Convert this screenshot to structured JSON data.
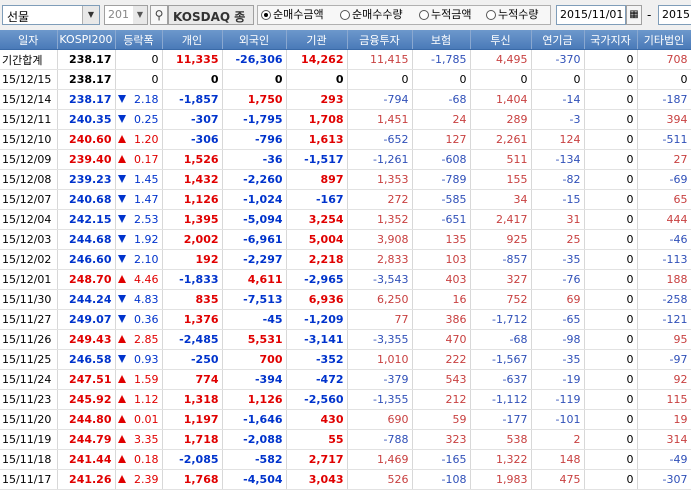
{
  "toolbar": {
    "product_select": "선물",
    "code_value": "201",
    "market_label": "KOSDAQ 종",
    "radios": [
      {
        "label": "순매수금액",
        "checked": true
      },
      {
        "label": "순매수수량",
        "checked": false
      },
      {
        "label": "누적금액",
        "checked": false
      },
      {
        "label": "누적수량",
        "checked": false
      }
    ],
    "start_date": "2015/11/01",
    "end_date": "2015",
    "dash": "-"
  },
  "table": {
    "headers": [
      "일자",
      "KOSPI200",
      "등락폭",
      "개인",
      "외국인",
      "기관",
      "금융투자",
      "보험",
      "투신",
      "연기금",
      "국가지자",
      "기타법인"
    ],
    "summary": {
      "date": "기간합계",
      "kospi": "238.17",
      "chg": "0",
      "indiv": "11,335",
      "foreign": "-26,306",
      "inst": "14,262",
      "fin": "11,415",
      "ins": "-1,785",
      "trust": "4,495",
      "pension": "-370",
      "gov": "0",
      "etc": "708"
    },
    "rows": [
      {
        "date": "15/12/15",
        "kospi": "238.17",
        "dir": "none",
        "chg": "0",
        "indiv": "0",
        "foreign": "0",
        "inst": "0",
        "fin": "0",
        "ins": "0",
        "trust": "0",
        "pension": "0",
        "gov": "0",
        "etc": "0"
      },
      {
        "date": "15/12/14",
        "kospi": "238.17",
        "dir": "down",
        "chg": "2.18",
        "indiv": "-1,857",
        "foreign": "1,750",
        "inst": "293",
        "fin": "-794",
        "ins": "-68",
        "trust": "1,404",
        "pension": "-14",
        "gov": "0",
        "etc": "-187"
      },
      {
        "date": "15/12/11",
        "kospi": "240.35",
        "dir": "down",
        "chg": "0.25",
        "indiv": "-307",
        "foreign": "-1,795",
        "inst": "1,708",
        "fin": "1,451",
        "ins": "24",
        "trust": "289",
        "pension": "-3",
        "gov": "0",
        "etc": "394"
      },
      {
        "date": "15/12/10",
        "kospi": "240.60",
        "dir": "up",
        "chg": "1.20",
        "indiv": "-306",
        "foreign": "-796",
        "inst": "1,613",
        "fin": "-652",
        "ins": "127",
        "trust": "2,261",
        "pension": "124",
        "gov": "0",
        "etc": "-511"
      },
      {
        "date": "15/12/09",
        "kospi": "239.40",
        "dir": "up",
        "chg": "0.17",
        "indiv": "1,526",
        "foreign": "-36",
        "inst": "-1,517",
        "fin": "-1,261",
        "ins": "-608",
        "trust": "511",
        "pension": "-134",
        "gov": "0",
        "etc": "27"
      },
      {
        "date": "15/12/08",
        "kospi": "239.23",
        "dir": "down",
        "chg": "1.45",
        "indiv": "1,432",
        "foreign": "-2,260",
        "inst": "897",
        "fin": "1,353",
        "ins": "-789",
        "trust": "155",
        "pension": "-82",
        "gov": "0",
        "etc": "-69"
      },
      {
        "date": "15/12/07",
        "kospi": "240.68",
        "dir": "down",
        "chg": "1.47",
        "indiv": "1,126",
        "foreign": "-1,024",
        "inst": "-167",
        "fin": "272",
        "ins": "-585",
        "trust": "34",
        "pension": "-15",
        "gov": "0",
        "etc": "65"
      },
      {
        "date": "15/12/04",
        "kospi": "242.15",
        "dir": "down",
        "chg": "2.53",
        "indiv": "1,395",
        "foreign": "-5,094",
        "inst": "3,254",
        "fin": "1,352",
        "ins": "-651",
        "trust": "2,417",
        "pension": "31",
        "gov": "0",
        "etc": "444"
      },
      {
        "date": "15/12/03",
        "kospi": "244.68",
        "dir": "down",
        "chg": "1.92",
        "indiv": "2,002",
        "foreign": "-6,961",
        "inst": "5,004",
        "fin": "3,908",
        "ins": "135",
        "trust": "925",
        "pension": "25",
        "gov": "0",
        "etc": "-46"
      },
      {
        "date": "15/12/02",
        "kospi": "246.60",
        "dir": "down",
        "chg": "2.10",
        "indiv": "192",
        "foreign": "-2,297",
        "inst": "2,218",
        "fin": "2,833",
        "ins": "103",
        "trust": "-857",
        "pension": "-35",
        "gov": "0",
        "etc": "-113"
      },
      {
        "date": "15/12/01",
        "kospi": "248.70",
        "dir": "up",
        "chg": "4.46",
        "indiv": "-1,833",
        "foreign": "4,611",
        "inst": "-2,965",
        "fin": "-3,543",
        "ins": "403",
        "trust": "327",
        "pension": "-76",
        "gov": "0",
        "etc": "188"
      },
      {
        "date": "15/11/30",
        "kospi": "244.24",
        "dir": "down",
        "chg": "4.83",
        "indiv": "835",
        "foreign": "-7,513",
        "inst": "6,936",
        "fin": "6,250",
        "ins": "16",
        "trust": "752",
        "pension": "69",
        "gov": "0",
        "etc": "-258"
      },
      {
        "date": "15/11/27",
        "kospi": "249.07",
        "dir": "down",
        "chg": "0.36",
        "indiv": "1,376",
        "foreign": "-45",
        "inst": "-1,209",
        "fin": "77",
        "ins": "386",
        "trust": "-1,712",
        "pension": "-65",
        "gov": "0",
        "etc": "-121"
      },
      {
        "date": "15/11/26",
        "kospi": "249.43",
        "dir": "up",
        "chg": "2.85",
        "indiv": "-2,485",
        "foreign": "5,531",
        "inst": "-3,141",
        "fin": "-3,355",
        "ins": "470",
        "trust": "-68",
        "pension": "-98",
        "gov": "0",
        "etc": "95"
      },
      {
        "date": "15/11/25",
        "kospi": "246.58",
        "dir": "down",
        "chg": "0.93",
        "indiv": "-250",
        "foreign": "700",
        "inst": "-352",
        "fin": "1,010",
        "ins": "222",
        "trust": "-1,567",
        "pension": "-35",
        "gov": "0",
        "etc": "-97"
      },
      {
        "date": "15/11/24",
        "kospi": "247.51",
        "dir": "up",
        "chg": "1.59",
        "indiv": "774",
        "foreign": "-394",
        "inst": "-472",
        "fin": "-379",
        "ins": "543",
        "trust": "-637",
        "pension": "-19",
        "gov": "0",
        "etc": "92"
      },
      {
        "date": "15/11/23",
        "kospi": "245.92",
        "dir": "up",
        "chg": "1.12",
        "indiv": "1,318",
        "foreign": "1,126",
        "inst": "-2,560",
        "fin": "-1,355",
        "ins": "212",
        "trust": "-1,112",
        "pension": "-119",
        "gov": "0",
        "etc": "115"
      },
      {
        "date": "15/11/20",
        "kospi": "244.80",
        "dir": "up",
        "chg": "0.01",
        "indiv": "1,197",
        "foreign": "-1,646",
        "inst": "430",
        "fin": "690",
        "ins": "59",
        "trust": "-177",
        "pension": "-101",
        "gov": "0",
        "etc": "19"
      },
      {
        "date": "15/11/19",
        "kospi": "244.79",
        "dir": "up",
        "chg": "3.35",
        "indiv": "1,718",
        "foreign": "-2,088",
        "inst": "55",
        "fin": "-788",
        "ins": "323",
        "trust": "538",
        "pension": "2",
        "gov": "0",
        "etc": "314"
      },
      {
        "date": "15/11/18",
        "kospi": "241.44",
        "dir": "up",
        "chg": "0.18",
        "indiv": "-2,085",
        "foreign": "-582",
        "inst": "2,717",
        "fin": "1,469",
        "ins": "-165",
        "trust": "1,322",
        "pension": "148",
        "gov": "0",
        "etc": "-49"
      },
      {
        "date": "15/11/17",
        "kospi": "241.26",
        "dir": "up",
        "chg": "2.39",
        "indiv": "1,768",
        "foreign": "-4,504",
        "inst": "3,043",
        "fin": "526",
        "ins": "-108",
        "trust": "1,983",
        "pension": "475",
        "gov": "0",
        "etc": "-307"
      }
    ]
  },
  "colors": {
    "header_bg": "#4f81bd",
    "up": "#e00000",
    "down": "#0033cc"
  }
}
